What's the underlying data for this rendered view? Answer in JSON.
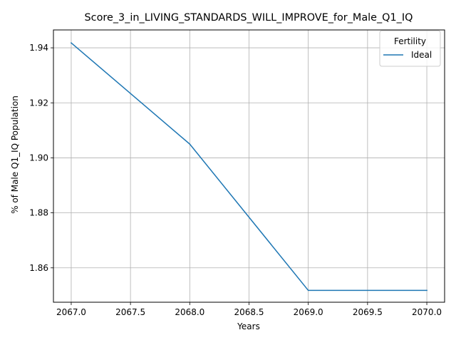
{
  "chart_data": {
    "type": "line",
    "title": "Score_3_in_LIVING_STANDARDS_WILL_IMPROVE_for_Male_Q1_IQ",
    "xlabel": "Years",
    "ylabel": "% of Male Q1_IQ Population",
    "x_ticks": [
      "2067.0",
      "2067.5",
      "2068.0",
      "2068.5",
      "2069.0",
      "2069.5",
      "2070.0"
    ],
    "y_ticks": [
      "1.86",
      "1.88",
      "1.90",
      "1.92",
      "1.94"
    ],
    "xlim": [
      2066.85,
      2070.15
    ],
    "ylim": [
      1.8475,
      1.9465
    ],
    "grid": true,
    "legend": {
      "title": "Fertility",
      "placement": "top-right"
    },
    "series": [
      {
        "name": "Ideal",
        "color": "#1f77b4",
        "x": [
          2067,
          2068,
          2069,
          2070
        ],
        "y": [
          1.9418,
          1.905,
          1.8518,
          1.8518
        ]
      }
    ]
  }
}
